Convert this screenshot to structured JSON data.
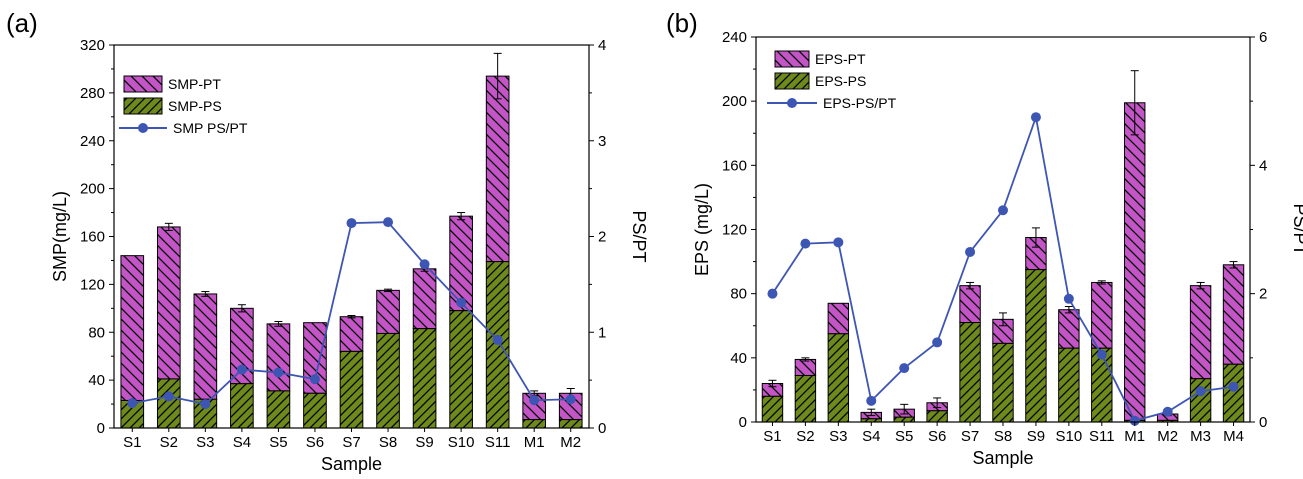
{
  "colors": {
    "pt_fill": "#c455c6",
    "ps_fill": "#6e8a1c",
    "line": "#3e56b3",
    "hatch": "#000000"
  },
  "chart_data": [
    {
      "type": "bar",
      "panel_label": "(a)",
      "stacked": true,
      "xlabel": "Sample",
      "ylabel": "SMP(mg/L)",
      "y2label": "PS/PT",
      "categories": [
        "S1",
        "S2",
        "S3",
        "S4",
        "S5",
        "S6",
        "S7",
        "S8",
        "S9",
        "S10",
        "S11",
        "M1",
        "M2"
      ],
      "ylim": [
        0,
        320
      ],
      "yticks": [
        0,
        40,
        80,
        120,
        160,
        200,
        240,
        280,
        320
      ],
      "y2lim": [
        0,
        4
      ],
      "y2ticks": [
        0,
        1,
        2,
        3,
        4
      ],
      "series": [
        {
          "name": "SMP-PT",
          "role": "total",
          "values": [
            144,
            168,
            112,
            100,
            87,
            88,
            93,
            115,
            133,
            177,
            294,
            29,
            29
          ],
          "errors": [
            0,
            3,
            2,
            3,
            2,
            0,
            1,
            1,
            2,
            3,
            19,
            2,
            4
          ]
        },
        {
          "name": "SMP-PS",
          "role": "part",
          "values": [
            23,
            41,
            24,
            37,
            31,
            29,
            64,
            79,
            83,
            98,
            139,
            7,
            7
          ]
        },
        {
          "name": "SMP PS/PT",
          "role": "ratio",
          "values": [
            0.26,
            0.33,
            0.25,
            0.61,
            0.58,
            0.51,
            2.14,
            2.15,
            1.71,
            1.31,
            0.92,
            0.29,
            0.3
          ]
        }
      ],
      "legend_position": "top-left"
    },
    {
      "type": "bar",
      "panel_label": "(b)",
      "stacked": true,
      "xlabel": "Sample",
      "ylabel": "EPS (mg/L)",
      "y2label": "PS/PT",
      "categories": [
        "S1",
        "S2",
        "S3",
        "S4",
        "S5",
        "S6",
        "S7",
        "S8",
        "S9",
        "S10",
        "S11",
        "M1",
        "M2",
        "M3",
        "M4"
      ],
      "ylim": [
        0,
        240
      ],
      "yticks": [
        0,
        40,
        80,
        120,
        160,
        200,
        240
      ],
      "y2lim": [
        0,
        6
      ],
      "y2ticks": [
        0,
        2,
        4,
        6
      ],
      "series": [
        {
          "name": "EPS-PT",
          "role": "total",
          "values": [
            24,
            39,
            74,
            6,
            8,
            12,
            85,
            64,
            115,
            70,
            87,
            199,
            5,
            85,
            98
          ],
          "errors": [
            2,
            1,
            0,
            2,
            3,
            3,
            2,
            4,
            6,
            2,
            1,
            20,
            1,
            2,
            2
          ]
        },
        {
          "name": "EPS-PS",
          "role": "part",
          "values": [
            16,
            29,
            55,
            2,
            3,
            7,
            62,
            49,
            95,
            46,
            46,
            1,
            1,
            27,
            36
          ]
        },
        {
          "name": "EPS-PS/PT",
          "role": "ratio",
          "values": [
            2.0,
            2.78,
            2.8,
            0.33,
            0.84,
            1.24,
            2.65,
            3.3,
            4.75,
            1.92,
            1.05,
            0.02,
            0.16,
            0.48,
            0.55
          ]
        }
      ],
      "legend_position": "top-left"
    }
  ]
}
